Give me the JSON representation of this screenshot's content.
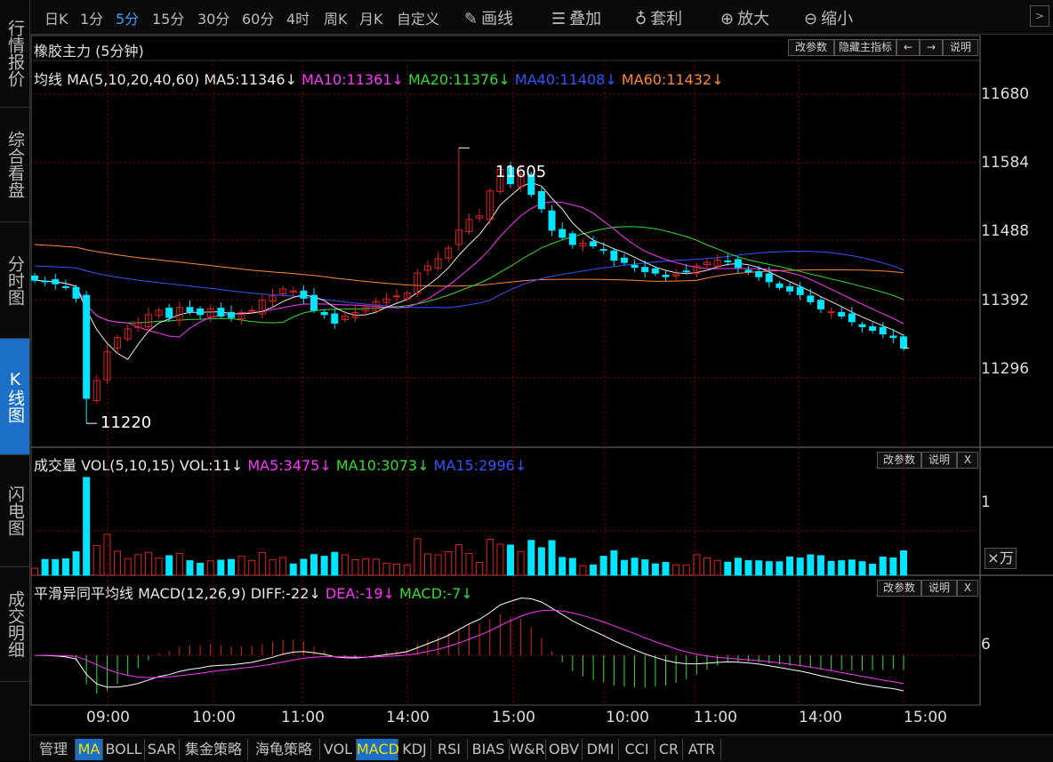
{
  "left_tabs": [
    {
      "label": "行情报价",
      "active": false
    },
    {
      "label": "综合看盘",
      "active": false
    },
    {
      "label": "分时图",
      "active": false
    },
    {
      "label": "K线图",
      "active": true
    },
    {
      "label": "闪电图",
      "active": false
    },
    {
      "label": "成交明细",
      "active": false
    }
  ],
  "toolbar": {
    "periods": [
      "日K",
      "1分",
      "5分",
      "15分",
      "30分",
      "60分",
      "4时",
      "周K",
      "月K",
      "自定义"
    ],
    "selected_period": "5分",
    "draw_label": "画线",
    "overlay_label": "叠加",
    "arbitrage_label": "套利",
    "zoom_in_label": "放大",
    "zoom_out_label": "缩小",
    "collapse_icon": "chevron-right"
  },
  "main_panel": {
    "title": "橡胶主力 (5分钟)",
    "buttons": {
      "params": "改参数",
      "hide": "隐藏主指标",
      "prev": "←",
      "next": "→",
      "help": "说明"
    },
    "legend": [
      {
        "text": "均线 MA(5,10,20,40,60) MA5:11346↓",
        "color": "#e8e8e8"
      },
      {
        "text": "MA10:11361↓",
        "color": "#ff33ff"
      },
      {
        "text": "MA20:11376↓",
        "color": "#33dd33"
      },
      {
        "text": "MA40:11408↓",
        "color": "#3355ff"
      },
      {
        "text": "MA60:11432↓",
        "color": "#ff8833"
      }
    ],
    "y_ticks": [
      "11680",
      "11584",
      "11488",
      "11392",
      "11296"
    ],
    "high_label": "11605",
    "low_label": "11220"
  },
  "volume_panel": {
    "legend": [
      {
        "text": "成交量 VOL(5,10,15) VOL:11↓",
        "color": "#e8e8e8"
      },
      {
        "text": "MA5:3475↓",
        "color": "#ff33ff"
      },
      {
        "text": "MA10:3073↓",
        "color": "#33dd33"
      },
      {
        "text": "MA15:2996↓",
        "color": "#3355ff"
      }
    ],
    "buttons": {
      "params": "改参数",
      "help": "说明",
      "close": "X"
    },
    "y_tick": "1",
    "unit_label": "×万"
  },
  "macd_panel": {
    "legend": [
      {
        "text": "平滑异同平均线 MACD(12,26,9) DIFF:-22↓",
        "color": "#e8e8e8"
      },
      {
        "text": "DEA:-19↓",
        "color": "#ff33ff"
      },
      {
        "text": "MACD:-7↓",
        "color": "#33dd33"
      }
    ],
    "buttons": {
      "params": "改参数",
      "help": "说明",
      "close": "X"
    },
    "y_tick": "6"
  },
  "x_ticks": [
    "09:00",
    "10:00",
    "11:00",
    "14:00",
    "15:00",
    "10:00",
    "11:00",
    "14:00",
    "15:00"
  ],
  "bottom_tabs": [
    "管理",
    "MA",
    "BOLL",
    "SAR",
    "集金策略",
    "海龟策略",
    "VOL",
    "MACD",
    "KDJ",
    "RSI",
    "BIAS",
    "W&R",
    "OBV",
    "DMI",
    "CCI",
    "CR",
    "ATR"
  ],
  "selected_bottom_tabs": [
    "MA",
    "MACD"
  ],
  "colors": {
    "up": "#e02020",
    "down": "#00e5ff",
    "grid": "#8b0000",
    "accent": "#1b6fc7"
  },
  "chart_data": {
    "type": "candlestick",
    "title": "橡胶主力 (5分钟)",
    "price_range": [
      11220,
      11700
    ],
    "period_count": 85,
    "high": {
      "index": 41,
      "value": 11605
    },
    "low": {
      "index": 5,
      "value": 11220
    },
    "close_series": [
      11420,
      11418,
      11415,
      11410,
      11395,
      11255,
      11280,
      11320,
      11340,
      11352,
      11360,
      11372,
      11378,
      11368,
      11382,
      11376,
      11372,
      11380,
      11370,
      11368,
      11375,
      11378,
      11392,
      11398,
      11408,
      11405,
      11395,
      11378,
      11372,
      11360,
      11370,
      11375,
      11382,
      11390,
      11394,
      11398,
      11402,
      11430,
      11440,
      11450,
      11465,
      11490,
      11505,
      11510,
      11545,
      11575,
      11555,
      11568,
      11540,
      11520,
      11490,
      11480,
      11470,
      11472,
      11468,
      11462,
      11448,
      11445,
      11438,
      11432,
      11430,
      11425,
      11428,
      11432,
      11440,
      11445,
      11448,
      11446,
      11438,
      11432,
      11425,
      11418,
      11410,
      11405,
      11400,
      11390,
      11380,
      11376,
      11370,
      11362,
      11355,
      11350,
      11345,
      11340,
      11325
    ]
  }
}
